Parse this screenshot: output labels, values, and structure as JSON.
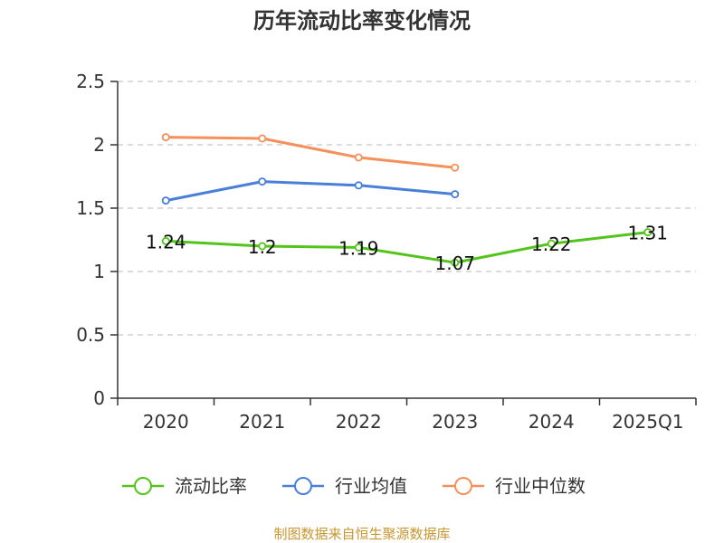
{
  "chart_data": {
    "type": "line",
    "title": "历年流动比率变化情况",
    "categories": [
      "2020",
      "2021",
      "2022",
      "2023",
      "2024",
      "2025Q1"
    ],
    "ylim": [
      0,
      2.5
    ],
    "yticks": [
      "0",
      "0.5",
      "1",
      "1.5",
      "2",
      "2.5"
    ],
    "grid": true,
    "legend_position": "bottom",
    "series": [
      {
        "name": "流动比率",
        "color": "#52c41a",
        "values": [
          1.24,
          1.2,
          1.19,
          1.07,
          1.22,
          1.31
        ],
        "labels": [
          "1.24",
          "1.2",
          "1.19",
          "1.07",
          "1.22",
          "1.31"
        ]
      },
      {
        "name": "行业均值",
        "color": "#4a7fd9",
        "values": [
          1.56,
          1.71,
          1.68,
          1.61,
          null,
          null
        ]
      },
      {
        "name": "行业中位数",
        "color": "#f5905a",
        "values": [
          2.06,
          2.05,
          1.9,
          1.82,
          null,
          null
        ]
      }
    ]
  },
  "source": "制图数据来自恒生聚源数据库"
}
